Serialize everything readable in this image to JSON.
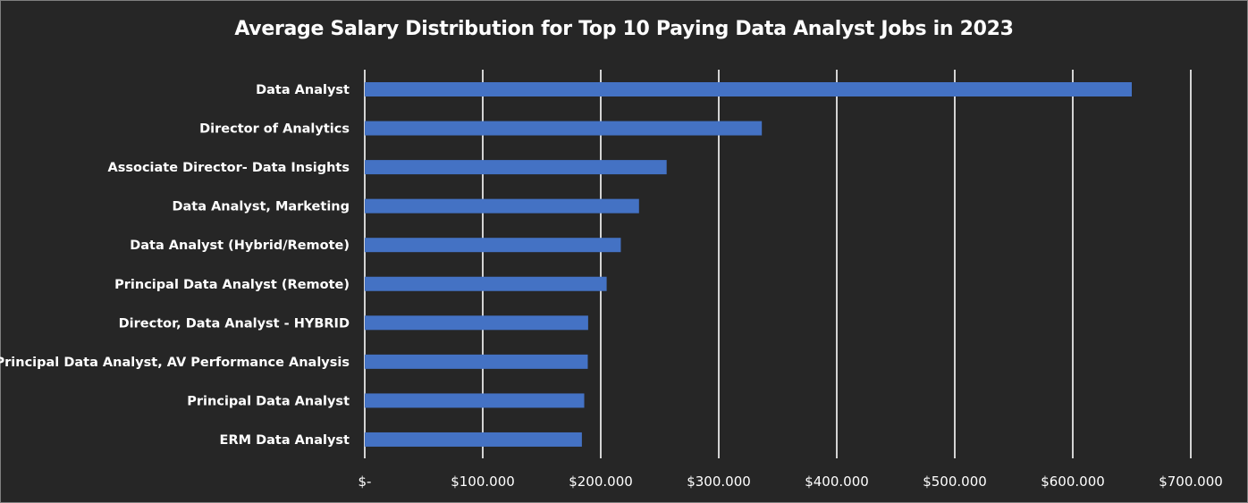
{
  "chart_data": {
    "type": "bar",
    "orientation": "horizontal",
    "title": "Average Salary Distribution for Top 10 Paying Data Analyst Jobs in 2023",
    "xlabel": "",
    "ylabel": "",
    "categories": [
      "Data Analyst",
      "Director of Analytics",
      "Associate Director- Data Insights",
      "Data Analyst, Marketing",
      "Data Analyst (Hybrid/Remote)",
      "Principal Data Analyst (Remote)",
      "Director, Data Analyst - HYBRID",
      "Principal Data Analyst, AV Performance Analysis",
      "Principal Data Analyst",
      "ERM Data Analyst"
    ],
    "values": [
      650000,
      336500,
      255829.5,
      232423,
      217000,
      205000,
      189309,
      189000,
      186000,
      184000
    ],
    "xlim": [
      0,
      700000
    ],
    "x_ticks": [
      0,
      100000,
      200000,
      300000,
      400000,
      500000,
      600000,
      700000
    ],
    "x_tick_labels": [
      "$-",
      "$100.000",
      "$200.000",
      "$300.000",
      "$400.000",
      "$500.000",
      "$600.000",
      "$700.000"
    ],
    "grid": "vertical",
    "legend": "none",
    "colors": {
      "bar": "#4472C4",
      "background": "#262626",
      "gridline": "#ffffff",
      "text": "#ffffff"
    }
  }
}
